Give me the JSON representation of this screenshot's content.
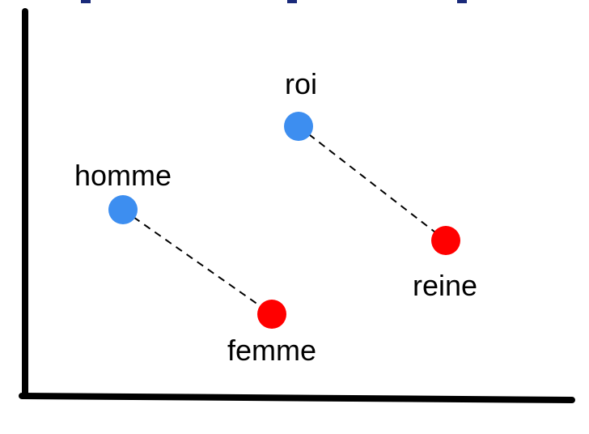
{
  "diagram": {
    "type": "word-embedding-analogy",
    "points": [
      {
        "id": "roi",
        "label": "roi",
        "group": "male",
        "color": "#3d8ef0"
      },
      {
        "id": "reine",
        "label": "reine",
        "group": "female",
        "color": "#ff0000"
      },
      {
        "id": "homme",
        "label": "homme",
        "group": "male",
        "color": "#3d8ef0"
      },
      {
        "id": "femme",
        "label": "femme",
        "group": "female",
        "color": "#ff0000"
      }
    ],
    "pairs": [
      {
        "from": "roi",
        "to": "reine",
        "style": "dashed"
      },
      {
        "from": "homme",
        "to": "femme",
        "style": "dashed"
      }
    ],
    "colors": {
      "male": "#3d8ef0",
      "female": "#ff0000",
      "axes": "#000000",
      "top_partial": "#1a2a7a"
    }
  }
}
